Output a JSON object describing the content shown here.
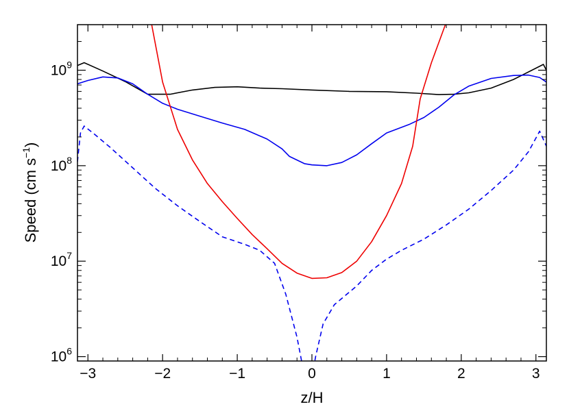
{
  "chart_data": {
    "type": "line",
    "title": "",
    "xlabel": "z/H",
    "ylabel": {
      "prefix": "Speed  (cm s",
      "superscript": "−1",
      "suffix": ")"
    },
    "xlim": [
      -3.14,
      3.14
    ],
    "ylim": [
      900000,
      3000000000
    ],
    "yscale": "log",
    "grid": false,
    "legend": "none",
    "x_ticks": [
      {
        "value": -3,
        "label": "−3"
      },
      {
        "value": -2,
        "label": "−2"
      },
      {
        "value": -1,
        "label": "−1"
      },
      {
        "value": 0,
        "label": "0"
      },
      {
        "value": 1,
        "label": "1"
      },
      {
        "value": 2,
        "label": "2"
      },
      {
        "value": 3,
        "label": "3"
      }
    ],
    "y_ticks": [
      {
        "value": 1000000,
        "base": "10",
        "exp": "6"
      },
      {
        "value": 10000000,
        "base": "10",
        "exp": "7"
      },
      {
        "value": 100000000,
        "base": "10",
        "exp": "8"
      },
      {
        "value": 1000000000,
        "base": "10",
        "exp": "9"
      }
    ],
    "series": [
      {
        "color": "#000000",
        "dash": "solid",
        "points": [
          [
            -3.14,
            1120000000.0
          ],
          [
            -3.05,
            1200000000.0
          ],
          [
            -2.8,
            980000000.0
          ],
          [
            -2.5,
            760000000.0
          ],
          [
            -2.2,
            560000000.0
          ],
          [
            -1.9,
            560000000.0
          ],
          [
            -1.6,
            620000000.0
          ],
          [
            -1.3,
            660000000.0
          ],
          [
            -1.0,
            670000000.0
          ],
          [
            -0.7,
            650000000.0
          ],
          [
            -0.4,
            640000000.0
          ],
          [
            0.0,
            620000000.0
          ],
          [
            0.5,
            600000000.0
          ],
          [
            1.0,
            595000000.0
          ],
          [
            1.4,
            575000000.0
          ],
          [
            1.7,
            555000000.0
          ],
          [
            1.9,
            560000000.0
          ],
          [
            2.1,
            580000000.0
          ],
          [
            2.4,
            650000000.0
          ],
          [
            2.7,
            800000000.0
          ],
          [
            3.0,
            1050000000.0
          ],
          [
            3.1,
            1150000000.0
          ],
          [
            3.14,
            1000000000.0
          ]
        ]
      },
      {
        "color": "#0000ee",
        "dash": "solid",
        "points": [
          [
            -3.14,
            720000000.0
          ],
          [
            -3.0,
            780000000.0
          ],
          [
            -2.8,
            850000000.0
          ],
          [
            -2.6,
            830000000.0
          ],
          [
            -2.4,
            720000000.0
          ],
          [
            -2.2,
            560000000.0
          ],
          [
            -2.0,
            450000000.0
          ],
          [
            -1.8,
            390000000.0
          ],
          [
            -1.5,
            330000000.0
          ],
          [
            -1.2,
            280000000.0
          ],
          [
            -0.9,
            240000000.0
          ],
          [
            -0.6,
            190000000.0
          ],
          [
            -0.4,
            150000000.0
          ],
          [
            -0.3,
            125000000.0
          ],
          [
            -0.1,
            105000000.0
          ],
          [
            0.0,
            102000000.0
          ],
          [
            0.2,
            100000000.0
          ],
          [
            0.4,
            108000000.0
          ],
          [
            0.6,
            130000000.0
          ],
          [
            0.8,
            170000000.0
          ],
          [
            1.0,
            220000000.0
          ],
          [
            1.3,
            270000000.0
          ],
          [
            1.5,
            320000000.0
          ],
          [
            1.7,
            410000000.0
          ],
          [
            1.9,
            550000000.0
          ],
          [
            2.1,
            680000000.0
          ],
          [
            2.4,
            820000000.0
          ],
          [
            2.7,
            880000000.0
          ],
          [
            2.9,
            890000000.0
          ],
          [
            3.05,
            840000000.0
          ],
          [
            3.14,
            750000000.0
          ]
        ]
      },
      {
        "color": "#0000ee",
        "dash": "dashed",
        "points": [
          [
            -3.14,
            110000000.0
          ],
          [
            -3.1,
            220000000.0
          ],
          [
            -3.05,
            260000000.0
          ],
          [
            -2.9,
            210000000.0
          ],
          [
            -2.7,
            155000000.0
          ],
          [
            -2.4,
            95000000.0
          ],
          [
            -2.1,
            58000000.0
          ],
          [
            -1.8,
            38000000.0
          ],
          [
            -1.5,
            26000000.0
          ],
          [
            -1.2,
            18000000.0
          ],
          [
            -0.9,
            15000000.0
          ],
          [
            -0.7,
            13000000.0
          ],
          [
            -0.5,
            9500000.0
          ],
          [
            -0.35,
            4500000.0
          ],
          [
            -0.2,
            1600000.0
          ],
          [
            -0.15,
            1000000.0
          ],
          [
            -0.12,
            750000.0
          ]
        ]
      },
      {
        "color": "#0000ee",
        "dash": "dashed",
        "points": [
          [
            0.02,
            750000.0
          ],
          [
            0.05,
            1000000.0
          ],
          [
            0.15,
            2200000.0
          ],
          [
            0.3,
            3500000.0
          ],
          [
            0.6,
            5500000.0
          ],
          [
            0.8,
            8000000.0
          ],
          [
            1.0,
            10500000.0
          ],
          [
            1.2,
            13000000.0
          ],
          [
            1.5,
            17000000.0
          ],
          [
            1.8,
            24000000.0
          ],
          [
            2.1,
            35000000.0
          ],
          [
            2.4,
            55000000.0
          ],
          [
            2.7,
            90000000.0
          ],
          [
            2.9,
            140000000.0
          ],
          [
            3.05,
            230000000.0
          ],
          [
            3.14,
            160000000.0
          ]
        ]
      },
      {
        "color": "#ee0000",
        "dash": "solid",
        "points": [
          [
            -2.2,
            5000000000.0
          ],
          [
            -2.0,
            750000000.0
          ],
          [
            -1.8,
            240000000.0
          ],
          [
            -1.6,
            115000000.0
          ],
          [
            -1.4,
            65000000.0
          ],
          [
            -1.2,
            42000000.0
          ],
          [
            -1.0,
            28000000.0
          ],
          [
            -0.8,
            19000000.0
          ],
          [
            -0.6,
            13500000.0
          ],
          [
            -0.4,
            9500000.0
          ],
          [
            -0.2,
            7500000.0
          ],
          [
            0.0,
            6600000.0
          ],
          [
            0.2,
            6700000.0
          ],
          [
            0.4,
            7600000.0
          ],
          [
            0.6,
            10000000.0
          ],
          [
            0.8,
            16000000.0
          ],
          [
            1.0,
            30000000.0
          ],
          [
            1.2,
            65000000.0
          ],
          [
            1.35,
            160000000.0
          ],
          [
            1.45,
            500000000.0
          ],
          [
            1.6,
            1200000000.0
          ],
          [
            1.8,
            3200000000.0
          ],
          [
            1.9,
            5000000000.0
          ]
        ]
      }
    ]
  }
}
